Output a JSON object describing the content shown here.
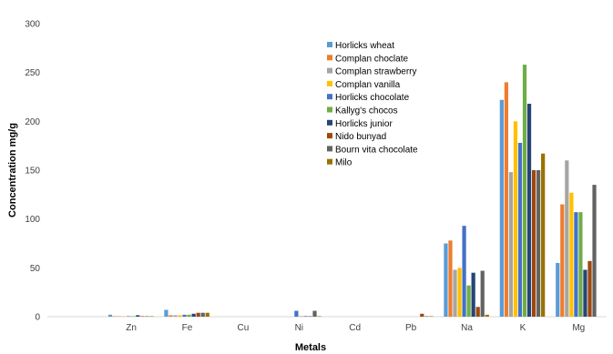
{
  "chart_data": {
    "type": "bar",
    "title": "",
    "xlabel": "Metals",
    "ylabel": "Concentration mg/g",
    "ylim": [
      0,
      300
    ],
    "yticks": [
      0,
      50,
      100,
      150,
      200,
      250,
      300
    ],
    "grid": false,
    "legend_position": "top-center",
    "categories": [
      "",
      "Zn",
      "Fe",
      "Cu",
      "Ni",
      "Cd",
      "Pb",
      "Na",
      "K",
      "Mg"
    ],
    "series": [
      {
        "name": "Horlicks wheat",
        "color": "#5B9BD5",
        "values": [
          0,
          2,
          7,
          0,
          0,
          0,
          0,
          75,
          222,
          55
        ]
      },
      {
        "name": "Complan choclate",
        "color": "#ED7D31",
        "values": [
          0,
          0.5,
          1.5,
          0,
          0,
          0,
          0,
          78,
          240,
          115
        ]
      },
      {
        "name": "Complan strawberry",
        "color": "#A5A5A5",
        "values": [
          0,
          0.5,
          1.5,
          0,
          0,
          0,
          0,
          48,
          148,
          160
        ]
      },
      {
        "name": "Complan vanilla",
        "color": "#FFC000",
        "values": [
          0,
          0.5,
          1.5,
          0,
          0,
          0,
          0,
          50,
          200,
          127
        ]
      },
      {
        "name": "Horlicks chocolate",
        "color": "#4472C4",
        "values": [
          0,
          0.5,
          2,
          0,
          6,
          0,
          0,
          93,
          178,
          107
        ]
      },
      {
        "name": "Kallyg's chocos",
        "color": "#70AD47",
        "values": [
          0,
          0.5,
          2,
          0,
          0.5,
          0,
          0,
          32,
          258,
          107
        ]
      },
      {
        "name": "Horlicks junior",
        "color": "#264478",
        "values": [
          0,
          1.5,
          3,
          0,
          0.5,
          0,
          0,
          45,
          218,
          48
        ]
      },
      {
        "name": "Nido bunyad",
        "color": "#9E480E",
        "values": [
          0,
          0.5,
          4,
          0,
          0.5,
          0,
          3,
          10,
          150,
          57
        ]
      },
      {
        "name": "Bourn vita chocolate",
        "color": "#636363",
        "values": [
          0,
          0.5,
          4,
          0,
          6,
          0,
          0.5,
          47,
          150,
          135
        ]
      },
      {
        "name": "Milo",
        "color": "#997300",
        "values": [
          0,
          0.5,
          4,
          0,
          0.5,
          0,
          0.5,
          2,
          167,
          0
        ]
      }
    ]
  }
}
